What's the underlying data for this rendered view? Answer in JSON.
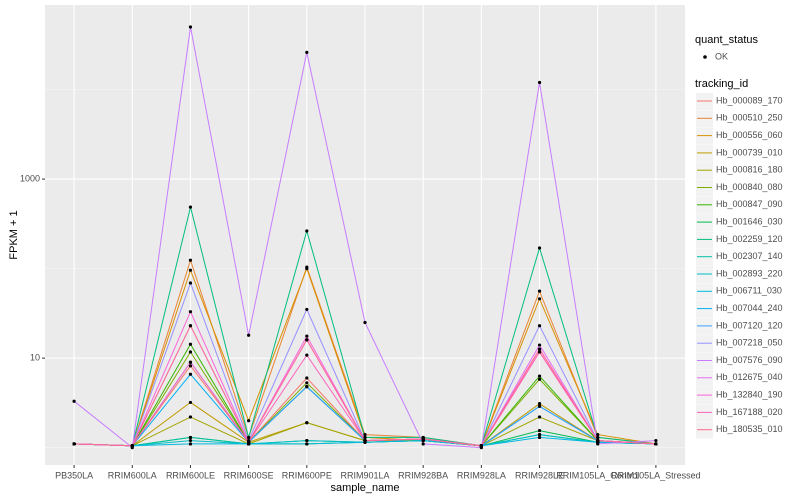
{
  "chart_data": {
    "type": "line",
    "log_scale": true,
    "grid": true,
    "x_label": "sample_name",
    "y_label": "FPKM + 1",
    "categories": [
      "PB350LA",
      "RRIM600LA",
      "RRIM600LE",
      "RRIM600SE",
      "RRIM600PE",
      "RRIM901LA",
      "RRIM928BA",
      "RRIM928LA",
      "RRIM928LE",
      "RRIM105LA_Control",
      "RRIM105LA_Stressed"
    ],
    "ylim": [
      0.64,
      88000
    ],
    "yticks": [
      10,
      1000
    ],
    "y_minor_grid": [
      1,
      100,
      10000
    ],
    "point_legend_title": "quant_status",
    "point_legend_label": "OK",
    "point_color": "#000000",
    "legend_title": "tracking_id",
    "series": [
      {
        "name": "Hb_000089_170",
        "color": "#F8766D",
        "values": [
          1.1,
          1.05,
          8.2,
          1.15,
          6.0,
          1.2,
          1.25,
          1.05,
          11.7,
          1.2,
          1.1
        ]
      },
      {
        "name": "Hb_000510_250",
        "color": "#EA8331",
        "values": [
          1.1,
          1.05,
          124,
          1.3,
          104,
          1.4,
          1.3,
          1.05,
          56,
          1.3,
          1.1
        ]
      },
      {
        "name": "Hb_000556_060",
        "color": "#D89000",
        "values": [
          1.1,
          1.05,
          96,
          2.0,
          100,
          1.3,
          1.2,
          1.05,
          46,
          1.4,
          1.1
        ]
      },
      {
        "name": "Hb_000739_010",
        "color": "#C09B00",
        "values": [
          1.1,
          1.05,
          3.2,
          1.15,
          1.9,
          1.2,
          1.25,
          1.05,
          3.1,
          1.2,
          1.1
        ]
      },
      {
        "name": "Hb_000816_180",
        "color": "#A3A500",
        "values": [
          1.1,
          1.05,
          2.2,
          1.1,
          1.9,
          1.2,
          1.2,
          1.05,
          2.2,
          1.2,
          1.1
        ]
      },
      {
        "name": "Hb_000840_080",
        "color": "#7CAE00",
        "values": [
          1.1,
          1.05,
          11.7,
          1.15,
          5.3,
          1.2,
          1.25,
          1.05,
          5.8,
          1.2,
          1.1
        ]
      },
      {
        "name": "Hb_000847_090",
        "color": "#39B600",
        "values": [
          1.1,
          1.05,
          14.3,
          1.15,
          4.8,
          1.2,
          1.25,
          1.05,
          6.3,
          1.2,
          1.1
        ]
      },
      {
        "name": "Hb_001646_030",
        "color": "#00BB4E",
        "values": [
          1.1,
          1.05,
          1.3,
          1.1,
          1.1,
          1.15,
          1.2,
          1.05,
          1.55,
          1.15,
          1.1
        ]
      },
      {
        "name": "Hb_002259_120",
        "color": "#00BF7D",
        "values": [
          1.1,
          1.05,
          486,
          1.3,
          263,
          1.3,
          1.3,
          1.05,
          170,
          1.3,
          1.1
        ]
      },
      {
        "name": "Hb_002307_140",
        "color": "#00C1A3",
        "values": [
          1.1,
          1.05,
          1.3,
          1.1,
          1.2,
          1.15,
          1.2,
          1.05,
          1.4,
          1.15,
          1.1
        ]
      },
      {
        "name": "Hb_002893_220",
        "color": "#00BFC4",
        "values": [
          1.1,
          1.05,
          1.2,
          1.1,
          1.2,
          1.15,
          1.2,
          1.05,
          1.4,
          1.15,
          1.1
        ]
      },
      {
        "name": "Hb_006711_030",
        "color": "#00BAE0",
        "values": [
          1.1,
          1.05,
          1.1,
          1.1,
          1.1,
          1.15,
          1.2,
          1.05,
          1.3,
          1.15,
          1.1
        ]
      },
      {
        "name": "Hb_007044_240",
        "color": "#00B0F6",
        "values": [
          1.1,
          1.05,
          6.6,
          1.15,
          4.8,
          1.2,
          1.25,
          1.05,
          2.9,
          1.2,
          1.1
        ]
      },
      {
        "name": "Hb_007120_120",
        "color": "#35A2FF",
        "values": [
          1.1,
          1.05,
          9.0,
          1.15,
          4.8,
          1.2,
          1.25,
          1.05,
          2.9,
          1.2,
          1.1
        ]
      },
      {
        "name": "Hb_007218_050",
        "color": "#9590FF",
        "values": [
          1.1,
          1.05,
          69,
          1.2,
          35,
          1.2,
          1.25,
          1.05,
          23,
          1.2,
          1.1
        ]
      },
      {
        "name": "Hb_007576_090",
        "color": "#C77CFF",
        "values": [
          3.3,
          1.0,
          50000,
          18,
          26000,
          25,
          1.1,
          1.0,
          12000,
          1.1,
          1.2
        ]
      },
      {
        "name": "Hb_012675_040",
        "color": "#E76BF3",
        "values": [
          1.1,
          1.05,
          23,
          1.15,
          16,
          1.2,
          1.25,
          1.05,
          14,
          1.2,
          1.1
        ]
      },
      {
        "name": "Hb_132840_190",
        "color": "#FA62DB",
        "values": [
          1.1,
          1.05,
          33,
          1.15,
          17.6,
          1.2,
          1.25,
          1.05,
          12.6,
          1.2,
          1.1
        ]
      },
      {
        "name": "Hb_167188_020",
        "color": "#FF62BC",
        "values": [
          1.1,
          1.05,
          9.0,
          1.15,
          10.8,
          1.2,
          1.25,
          1.05,
          11.7,
          1.2,
          1.1
        ]
      },
      {
        "name": "Hb_180535_010",
        "color": "#FF6C90",
        "values": [
          1.1,
          1.05,
          23,
          1.15,
          16,
          1.2,
          1.25,
          1.05,
          12.6,
          1.2,
          1.1
        ]
      }
    ]
  }
}
